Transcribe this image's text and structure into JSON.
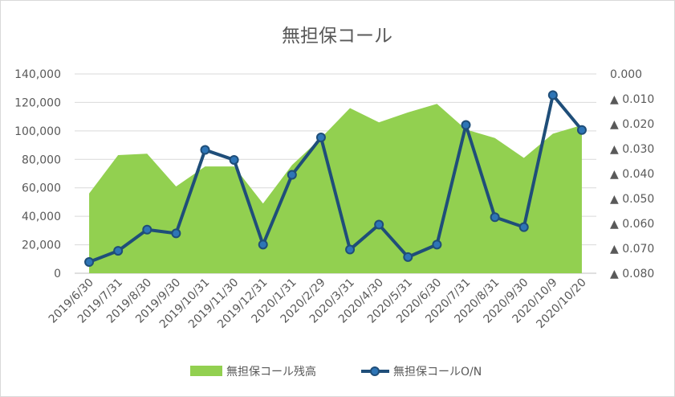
{
  "chart_data": {
    "type": "area",
    "title": "無担保コール",
    "categories": [
      "2019/6/30",
      "2019/7/31",
      "2019/8/30",
      "2019/9/30",
      "2019/10/31",
      "2019/11/30",
      "2019/12/31",
      "2020/1/31",
      "2020/2/29",
      "2020/3/31",
      "2020/4/30",
      "2020/5/31",
      "2020/6/30",
      "2020/7/31",
      "2020/8/31",
      "2020/9/30",
      "2020/10/9",
      "2020/10/20"
    ],
    "series": [
      {
        "name": "無担保コール残高",
        "type": "area",
        "axis": "left",
        "color": "#92d050",
        "values": [
          56000,
          83000,
          84000,
          61000,
          75000,
          75000,
          49000,
          76000,
          95000,
          116000,
          106000,
          113000,
          119000,
          101000,
          95000,
          81000,
          98000,
          104000
        ]
      },
      {
        "name": "無担保コールO/N",
        "type": "line",
        "axis": "right",
        "color": "#1f4e79",
        "marker_color": "#2e75b6",
        "values": [
          -0.0755,
          -0.071,
          -0.0625,
          -0.064,
          -0.0305,
          -0.0345,
          -0.0685,
          -0.0405,
          -0.0255,
          -0.0705,
          -0.0605,
          -0.0735,
          -0.0685,
          -0.0205,
          -0.0575,
          -0.0615,
          -0.0085,
          -0.0225
        ]
      }
    ],
    "y_left": {
      "ylim": [
        0,
        140000
      ],
      "ticks": [
        "0",
        "20,000",
        "40,000",
        "60,000",
        "80,000",
        "100,000",
        "120,000",
        "140,000"
      ]
    },
    "y_right": {
      "ylim": [
        -0.08,
        0
      ],
      "ticks": [
        "0.000",
        "▲ 0.010",
        "▲ 0.020",
        "▲ 0.030",
        "▲ 0.040",
        "▲ 0.050",
        "▲ 0.060",
        "▲ 0.070",
        "▲ 0.080"
      ]
    },
    "grid": true,
    "legend": "bottom"
  }
}
